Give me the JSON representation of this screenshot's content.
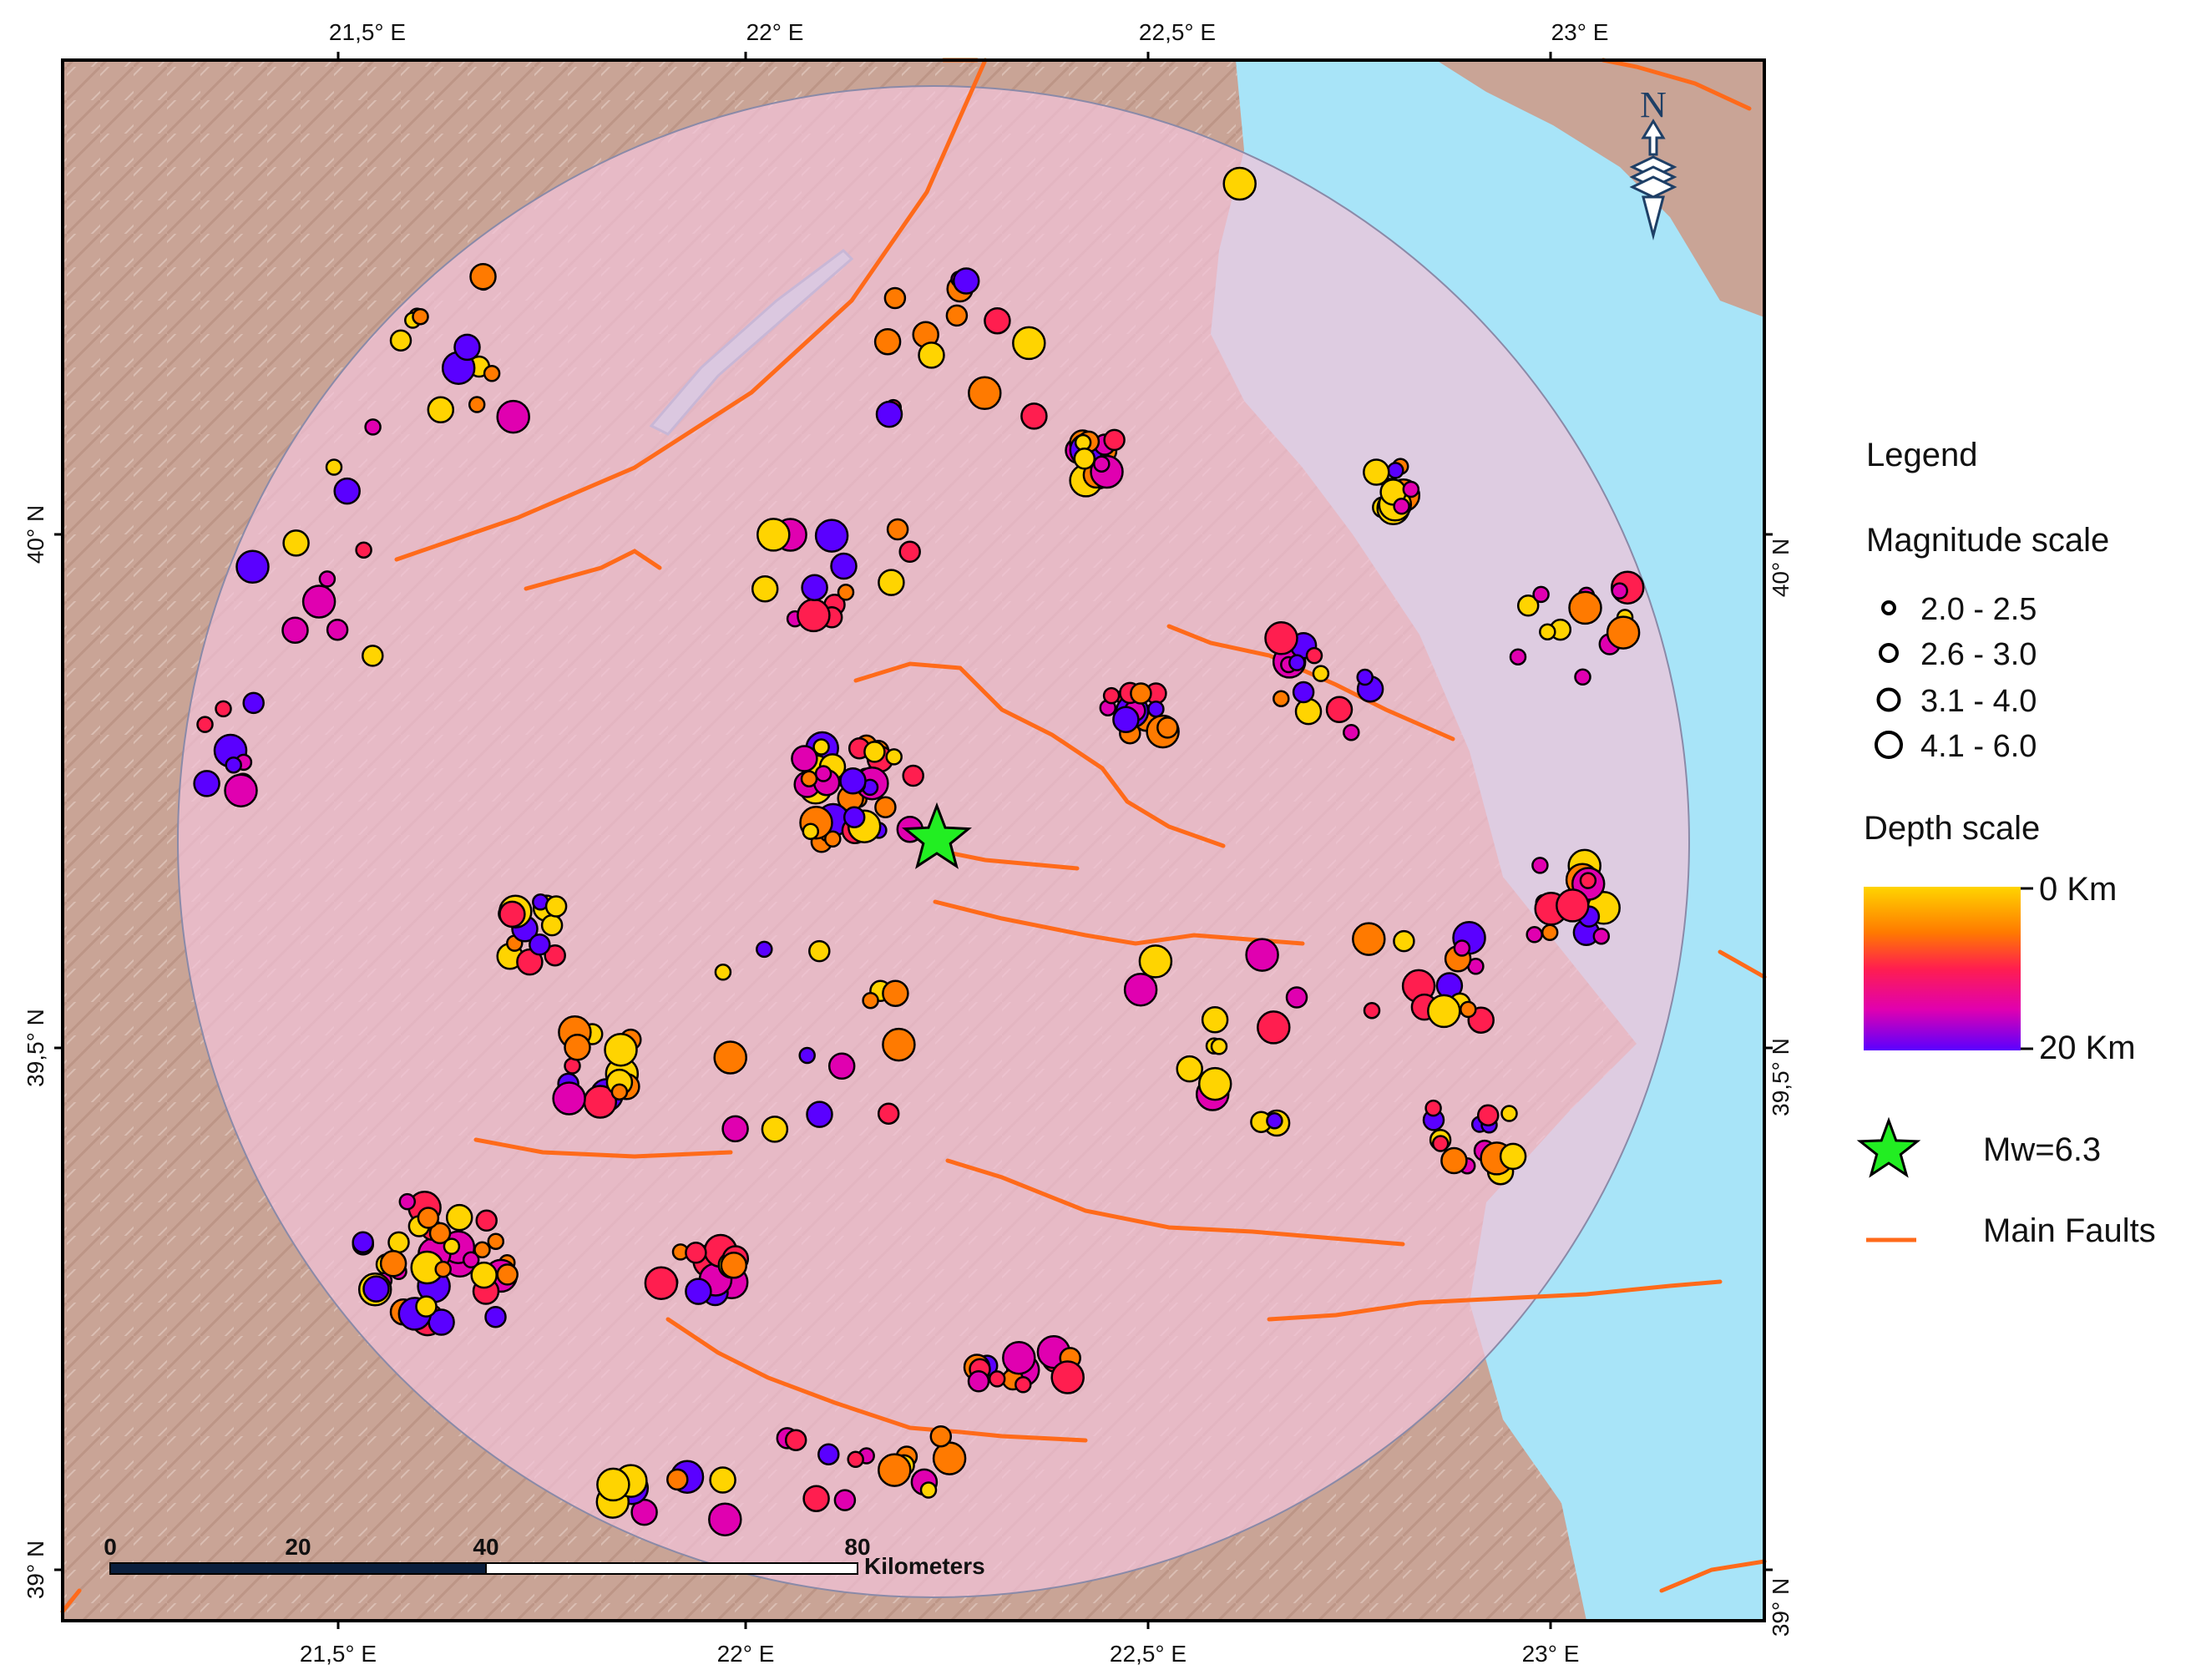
{
  "map": {
    "axes": {
      "lon_ticks": [
        "21,5° E",
        "22° E",
        "22,5° E",
        "23° E"
      ],
      "lat_ticks": [
        "40° N",
        "39,5° N",
        "39° N"
      ]
    },
    "scale_bar": {
      "ticks": [
        "0",
        "20",
        "40",
        "80"
      ],
      "unit": "Kilometers"
    },
    "north_arrow": {
      "letter": "N",
      "icon": "north-arrow-icon"
    },
    "legend": {
      "title": "Legend",
      "magnitude": {
        "title": "Magnitude scale",
        "classes": [
          "2.0 - 2.5",
          "2.6 - 3.0",
          "3.1 - 4.0",
          "4.1 - 6.0"
        ]
      },
      "depth": {
        "title": "Depth scale",
        "min_label": "0 Km",
        "max_label": "20 Km",
        "colors": [
          "#ffd400",
          "#ff7a00",
          "#ff1e4f",
          "#e000b0",
          "#5a00ff"
        ]
      },
      "mainshock": {
        "label": "Mw=6.3",
        "color": "#22ee22"
      },
      "faults": {
        "label": "Main Faults",
        "color": "#ff6a1a"
      }
    },
    "colors": {
      "terrain": "#c9a496",
      "study_area": "#f0b8d2",
      "sea": "#a8e4f8",
      "fault": "#ff6a1a",
      "epicenter": "#22ee22"
    }
  }
}
